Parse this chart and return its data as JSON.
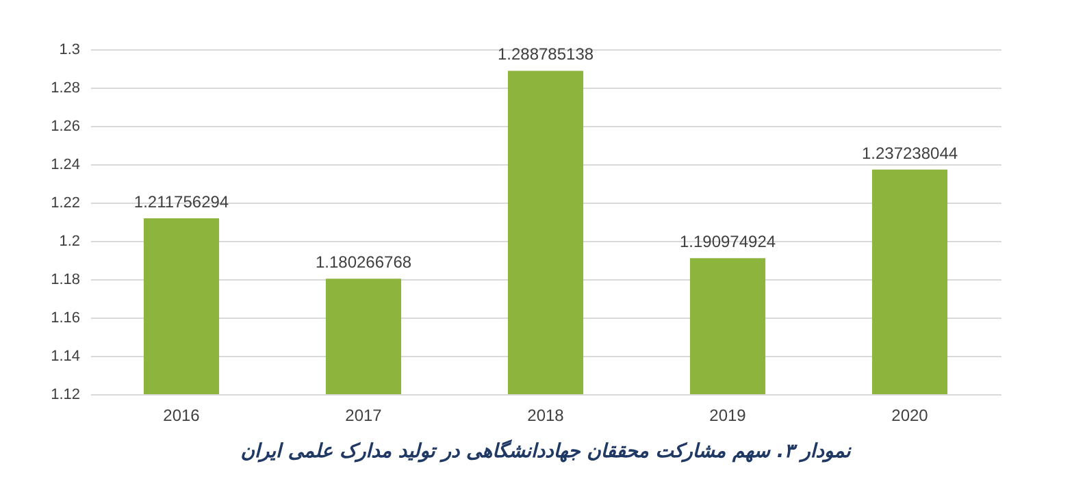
{
  "chart_data": {
    "type": "bar",
    "title": "نمودار ۳. سهم مشارکت محققان جهاددانشگاهی در تولید مدارک علمی ایران",
    "categories": [
      "2016",
      "2017",
      "2018",
      "2019",
      "2020"
    ],
    "values": [
      1.211756294,
      1.180266768,
      1.288785138,
      1.190974924,
      1.237238044
    ],
    "color": "#8db43c",
    "ylim": [
      1.12,
      1.3
    ],
    "yticks": [
      1.12,
      1.14,
      1.16,
      1.18,
      1.2,
      1.22,
      1.24,
      1.26,
      1.28,
      1.3
    ],
    "grid": "y",
    "data_labels": true
  }
}
